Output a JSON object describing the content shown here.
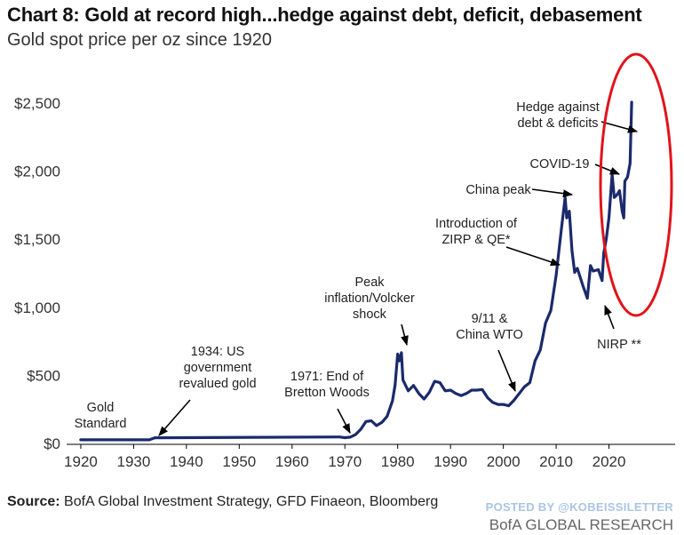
{
  "title_bold": "Chart 8: Gold at record high...hedge against debt, deficit, debasement",
  "subtitle": "Gold spot price per oz since 1920",
  "source_label": "Source:",
  "source_text": "BofA Global Investment Strategy, GFD Finaeon, Bloomberg",
  "posted_by": "POSTED BY @KOBEISSILETTER",
  "brand": "BofA GLOBAL RESEARCH",
  "colors": {
    "line": "#1b2a6b",
    "highlight": "#e0141b",
    "axis": "#000000"
  },
  "chart_data": {
    "type": "line",
    "title": "Gold spot price per oz since 1920",
    "xlabel": "",
    "ylabel": "",
    "xlim": [
      1919,
      2030
    ],
    "ylim": [
      0,
      2500
    ],
    "x_ticks": [
      1920,
      1930,
      1940,
      1950,
      1960,
      1970,
      1980,
      1990,
      2000,
      2010,
      2020
    ],
    "x_tick_labels": [
      "1920",
      "1930",
      "1940",
      "1950",
      "1960",
      "1970",
      "1980",
      "1990",
      "2000",
      "2010",
      "2020"
    ],
    "y_ticks": [
      0,
      500,
      1000,
      1500,
      2000,
      2500
    ],
    "y_tick_labels": [
      "$0",
      "$500",
      "$1,000",
      "$1,500",
      "$2,000",
      "$2,500"
    ],
    "series": [
      {
        "name": "Gold spot price",
        "x": [
          1920,
          1933,
          1934,
          1969,
          1970,
          1971,
          1972,
          1973,
          1974,
          1975,
          1976,
          1977,
          1978,
          1979,
          1979.5,
          1980,
          1980.3,
          1980.7,
          1981,
          1982,
          1983,
          1984,
          1985,
          1986,
          1987,
          1988,
          1989,
          1990,
          1991,
          1992,
          1993,
          1994,
          1995,
          1996,
          1997,
          1998,
          1999,
          2000,
          2001,
          2002,
          2003,
          2004,
          2005,
          2006,
          2007,
          2008,
          2009,
          2010,
          2011,
          2011.7,
          2012,
          2012.5,
          2013,
          2013.5,
          2014,
          2015,
          2015.9,
          2016.5,
          2017,
          2018,
          2018.7,
          2019,
          2019.5,
          2020,
          2020.6,
          2021,
          2021.5,
          2022,
          2022.5,
          2022.8,
          2023,
          2023.5,
          2024,
          2024.3
        ],
        "y": [
          20,
          20,
          35,
          41,
          36,
          40,
          58,
          97,
          155,
          160,
          125,
          148,
          193,
          306,
          420,
          650,
          600,
          660,
          460,
          380,
          420,
          360,
          320,
          370,
          450,
          440,
          380,
          385,
          360,
          345,
          360,
          385,
          385,
          390,
          330,
          295,
          280,
          280,
          270,
          310,
          360,
          410,
          440,
          600,
          680,
          880,
          970,
          1230,
          1570,
          1800,
          1650,
          1700,
          1410,
          1250,
          1280,
          1160,
          1060,
          1300,
          1260,
          1270,
          1190,
          1390,
          1500,
          1650,
          1970,
          1800,
          1820,
          1850,
          1700,
          1650,
          1920,
          1950,
          2050,
          2500
        ]
      }
    ],
    "annotations": [
      {
        "lines": [
          "Gold",
          "Standard"
        ],
        "x": 1924,
        "y": 50
      },
      {
        "lines": [
          "1934: US",
          "government",
          "revalued gold"
        ],
        "x": 1934,
        "y": 40
      },
      {
        "lines": [
          "1971: End of",
          "Bretton Woods"
        ],
        "x": 1970,
        "y": 40
      },
      {
        "lines": [
          "Peak",
          "inflation/Volcker",
          "shock"
        ],
        "x": 1980,
        "y": 680
      },
      {
        "lines": [
          "9/11 &",
          "China WTO"
        ],
        "x": 2001,
        "y": 310
      },
      {
        "lines": [
          "Introduction of",
          "ZIRP & QE*"
        ],
        "x": 2009,
        "y": 1290
      },
      {
        "lines": [
          "China peak"
        ],
        "x": 2011.5,
        "y": 1810
      },
      {
        "lines": [
          "COVID-19"
        ],
        "x": 2020.5,
        "y": 1950
      },
      {
        "lines": [
          "NIRP **"
        ],
        "x": 2016,
        "y": 1080
      },
      {
        "lines": [
          "Hedge against",
          "debt & deficits"
        ],
        "x": 2023.5,
        "y": 2280
      }
    ],
    "highlight": "red ellipse around 2019-2024 rally",
    "grid": false,
    "legend": "none"
  }
}
